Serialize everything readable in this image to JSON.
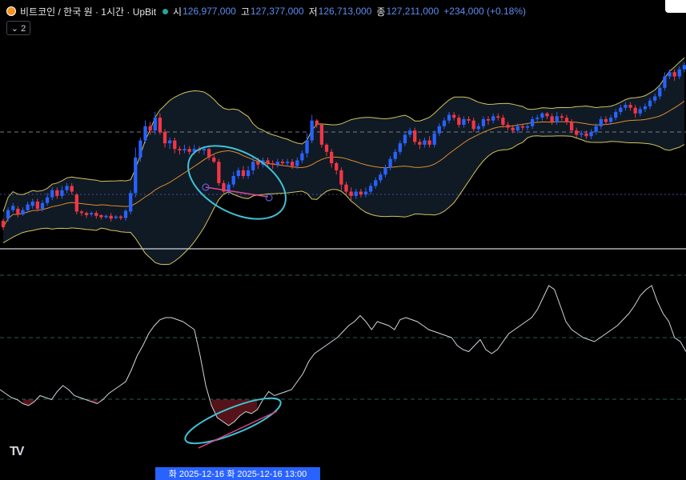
{
  "header": {
    "title": "비트코인 / 한국 원 · 1시간 · UpBit",
    "open_label": "시",
    "open": "126,977,000",
    "high_label": "고",
    "high": "127,377,000",
    "low_label": "저",
    "low": "126,713,000",
    "close_label": "종",
    "close": "127,211,000",
    "change": "+234,000 (+0.18%)",
    "collapse_label": "⌄ 2"
  },
  "logo_text": "TV",
  "cursor_time": "화 2025-12-16   화 2025-12-16   13:00",
  "colors": {
    "up": "#2962ff",
    "down": "#f23645",
    "band": "#d4c45c",
    "basis": "#e08b2e",
    "rsi": "#d1d4dc",
    "marker": "#3fc1d6",
    "divergence": "#e0458a"
  },
  "chart_data": [
    {
      "type": "candlestick",
      "series": [
        {
          "name": "candles",
          "ohlc": [
            [
              87,
              78,
              74,
              90
            ],
            [
              90,
              102,
              86,
              106
            ],
            [
              102,
              108,
              99,
              112
            ],
            [
              104,
              96,
              92,
              108
            ],
            [
              96,
              102,
              94,
              106
            ],
            [
              102,
              110,
              98,
              114
            ],
            [
              108,
              114,
              104,
              118
            ],
            [
              114,
              104,
              100,
              118
            ],
            [
              104,
              112,
              100,
              116
            ],
            [
              112,
              120,
              108,
              126
            ],
            [
              120,
              130,
              116,
              134
            ],
            [
              130,
              122,
              118,
              134
            ],
            [
              122,
              130,
              118,
              136
            ],
            [
              130,
              136,
              126,
              140
            ],
            [
              136,
              128,
              124,
              140
            ],
            [
              124,
              100,
              96,
              126
            ],
            [
              100,
              98,
              94,
              102
            ],
            [
              98,
              95,
              91,
              100
            ],
            [
              96,
              98,
              93,
              100
            ],
            [
              98,
              94,
              90,
              101
            ],
            [
              95,
              92,
              89,
              96
            ],
            [
              92,
              94,
              90,
              96
            ],
            [
              94,
              90,
              86,
              98
            ],
            [
              91,
              93,
              89,
              95
            ],
            [
              93,
              91,
              88,
              95
            ],
            [
              91,
              101,
              87,
              104
            ],
            [
              100,
              126,
              96,
              130
            ],
            [
              126,
              176,
              120,
              190
            ],
            [
              176,
              200,
              170,
              204
            ],
            [
              200,
              220,
              196,
              228
            ],
            [
              220,
              214,
              208,
              226
            ],
            [
              214,
              232,
              208,
              240
            ],
            [
              232,
              212,
              208,
              238
            ],
            [
              212,
              196,
              190,
              216
            ],
            [
              196,
              200,
              188,
              204
            ],
            [
              200,
              188,
              182,
              204
            ],
            [
              188,
              186,
              180,
              192
            ],
            [
              186,
              188,
              182,
              194
            ],
            [
              188,
              184,
              180,
              192
            ],
            [
              184,
              188,
              180,
              194
            ],
            [
              188,
              186,
              182,
              192
            ],
            [
              186,
              188,
              180,
              192
            ],
            [
              188,
              176,
              172,
              190
            ],
            [
              176,
              170,
              168,
              180
            ],
            [
              170,
              140,
              136,
              174
            ],
            [
              140,
              128,
              126,
              144
            ],
            [
              128,
              138,
              124,
              142
            ],
            [
              138,
              150,
              134,
              156
            ],
            [
              150,
              158,
              146,
              162
            ],
            [
              158,
              150,
              146,
              164
            ],
            [
              150,
              158,
              146,
              164
            ],
            [
              158,
              170,
              152,
              176
            ],
            [
              170,
              166,
              160,
              176
            ],
            [
              166,
              172,
              162,
              176
            ],
            [
              172,
              168,
              162,
              176
            ],
            [
              168,
              166,
              160,
              172
            ],
            [
              166,
              170,
              162,
              174
            ],
            [
              170,
              168,
              164,
              174
            ],
            [
              168,
              170,
              164,
              174
            ],
            [
              170,
              164,
              160,
              174
            ],
            [
              164,
              172,
              160,
              176
            ],
            [
              172,
              182,
              168,
              186
            ],
            [
              182,
              200,
              176,
              210
            ],
            [
              200,
              228,
              196,
              236
            ],
            [
              228,
              222,
              218,
              230
            ],
            [
              222,
              194,
              190,
              224
            ],
            [
              194,
              184,
              178,
              196
            ],
            [
              184,
              168,
              162,
              188
            ],
            [
              168,
              158,
              152,
              170
            ],
            [
              158,
              138,
              130,
              162
            ],
            [
              138,
              128,
              124,
              142
            ],
            [
              128,
              122,
              116,
              134
            ],
            [
              122,
              128,
              118,
              132
            ],
            [
              128,
              124,
              120,
              132
            ],
            [
              124,
              128,
              120,
              134
            ],
            [
              128,
              136,
              124,
              140
            ],
            [
              136,
              144,
              132,
              148
            ],
            [
              144,
              152,
              140,
              156
            ],
            [
              152,
              162,
              148,
              166
            ],
            [
              162,
              174,
              158,
              178
            ],
            [
              174,
              184,
              170,
              188
            ],
            [
              184,
              196,
              180,
              200
            ],
            [
              196,
              208,
              192,
              212
            ],
            [
              208,
              214,
              204,
              218
            ],
            [
              214,
              198,
              194,
              218
            ],
            [
              198,
              194,
              188,
              202
            ],
            [
              194,
              200,
              190,
              204
            ],
            [
              200,
              194,
              190,
              206
            ],
            [
              194,
              210,
              190,
              214
            ],
            [
              210,
              220,
              206,
              224
            ],
            [
              220,
              228,
              216,
              232
            ],
            [
              228,
              236,
              224,
              240
            ],
            [
              236,
              232,
              228,
              240
            ],
            [
              232,
              222,
              218,
              236
            ],
            [
              222,
              230,
              218,
              234
            ],
            [
              230,
              228,
              224,
              234
            ],
            [
              228,
              216,
              212,
              232
            ],
            [
              216,
              220,
              212,
              224
            ],
            [
              220,
              230,
              216,
              234
            ],
            [
              230,
              228,
              222,
              234
            ],
            [
              228,
              234,
              224,
              238
            ],
            [
              234,
              232,
              228,
              238
            ],
            [
              232,
              222,
              218,
              236
            ],
            [
              222,
              218,
              214,
              226
            ],
            [
              218,
              214,
              210,
              222
            ],
            [
              214,
              220,
              210,
              224
            ],
            [
              220,
              218,
              214,
              224
            ],
            [
              218,
              220,
              214,
              224
            ],
            [
              220,
              230,
              216,
              234
            ],
            [
              230,
              232,
              226,
              236
            ],
            [
              232,
              238,
              228,
              240
            ],
            [
              238,
              234,
              230,
              240
            ],
            [
              234,
              226,
              222,
              238
            ],
            [
              226,
              234,
              222,
              240
            ],
            [
              234,
              232,
              228,
              238
            ],
            [
              232,
              226,
              222,
              236
            ],
            [
              226,
              214,
              210,
              230
            ],
            [
              214,
              208,
              204,
              218
            ],
            [
              208,
              210,
              204,
              214
            ],
            [
              210,
              206,
              202,
              214
            ],
            [
              206,
              212,
              202,
              216
            ],
            [
              212,
              220,
              208,
              224
            ],
            [
              220,
              230,
              216,
              234
            ],
            [
              230,
              226,
              222,
              234
            ],
            [
              226,
              232,
              222,
              236
            ],
            [
              232,
              240,
              228,
              244
            ],
            [
              240,
              246,
              236,
              250
            ],
            [
              246,
              250,
              242,
              254
            ],
            [
              250,
              246,
              242,
              254
            ],
            [
              246,
              238,
              232,
              250
            ],
            [
              238,
              244,
              234,
              248
            ],
            [
              244,
              248,
              240,
              252
            ],
            [
              248,
              256,
              244,
              260
            ],
            [
              256,
              262,
              252,
              266
            ],
            [
              262,
              274,
              258,
              278
            ],
            [
              274,
              290,
              270,
              296
            ],
            [
              290,
              296,
              286,
              300
            ],
            [
              296,
              290,
              284,
              300
            ],
            [
              290,
              300,
              286,
              304
            ],
            [
              300,
              306,
              296,
              310
            ]
          ]
        }
      ]
    },
    {
      "type": "line",
      "series": [
        {
          "name": "rsi",
          "values": [
            38,
            36,
            34,
            33,
            31,
            30,
            32,
            35,
            34,
            33,
            37,
            40,
            38,
            35,
            34,
            33,
            32,
            31,
            33,
            36,
            38,
            40,
            42,
            48,
            55,
            60,
            66,
            70,
            73,
            74,
            74,
            73,
            72,
            70,
            68,
            55,
            40,
            30,
            24,
            22,
            20,
            22,
            25,
            27,
            26,
            28,
            33,
            37,
            35,
            36,
            37,
            38,
            42,
            46,
            52,
            56,
            58,
            60,
            62,
            64,
            67,
            70,
            72,
            75,
            72,
            68,
            72,
            71,
            70,
            68,
            73,
            74,
            73,
            72,
            70,
            68,
            67,
            66,
            65,
            64,
            60,
            58,
            57,
            60,
            63,
            58,
            56,
            58,
            62,
            66,
            68,
            70,
            72,
            74,
            78,
            84,
            90,
            88,
            80,
            72,
            68,
            66,
            64,
            63,
            62,
            64,
            66,
            68,
            70,
            73,
            76,
            80,
            85,
            88,
            90,
            82,
            76,
            72,
            64,
            62,
            57
          ]
        }
      ]
    }
  ]
}
